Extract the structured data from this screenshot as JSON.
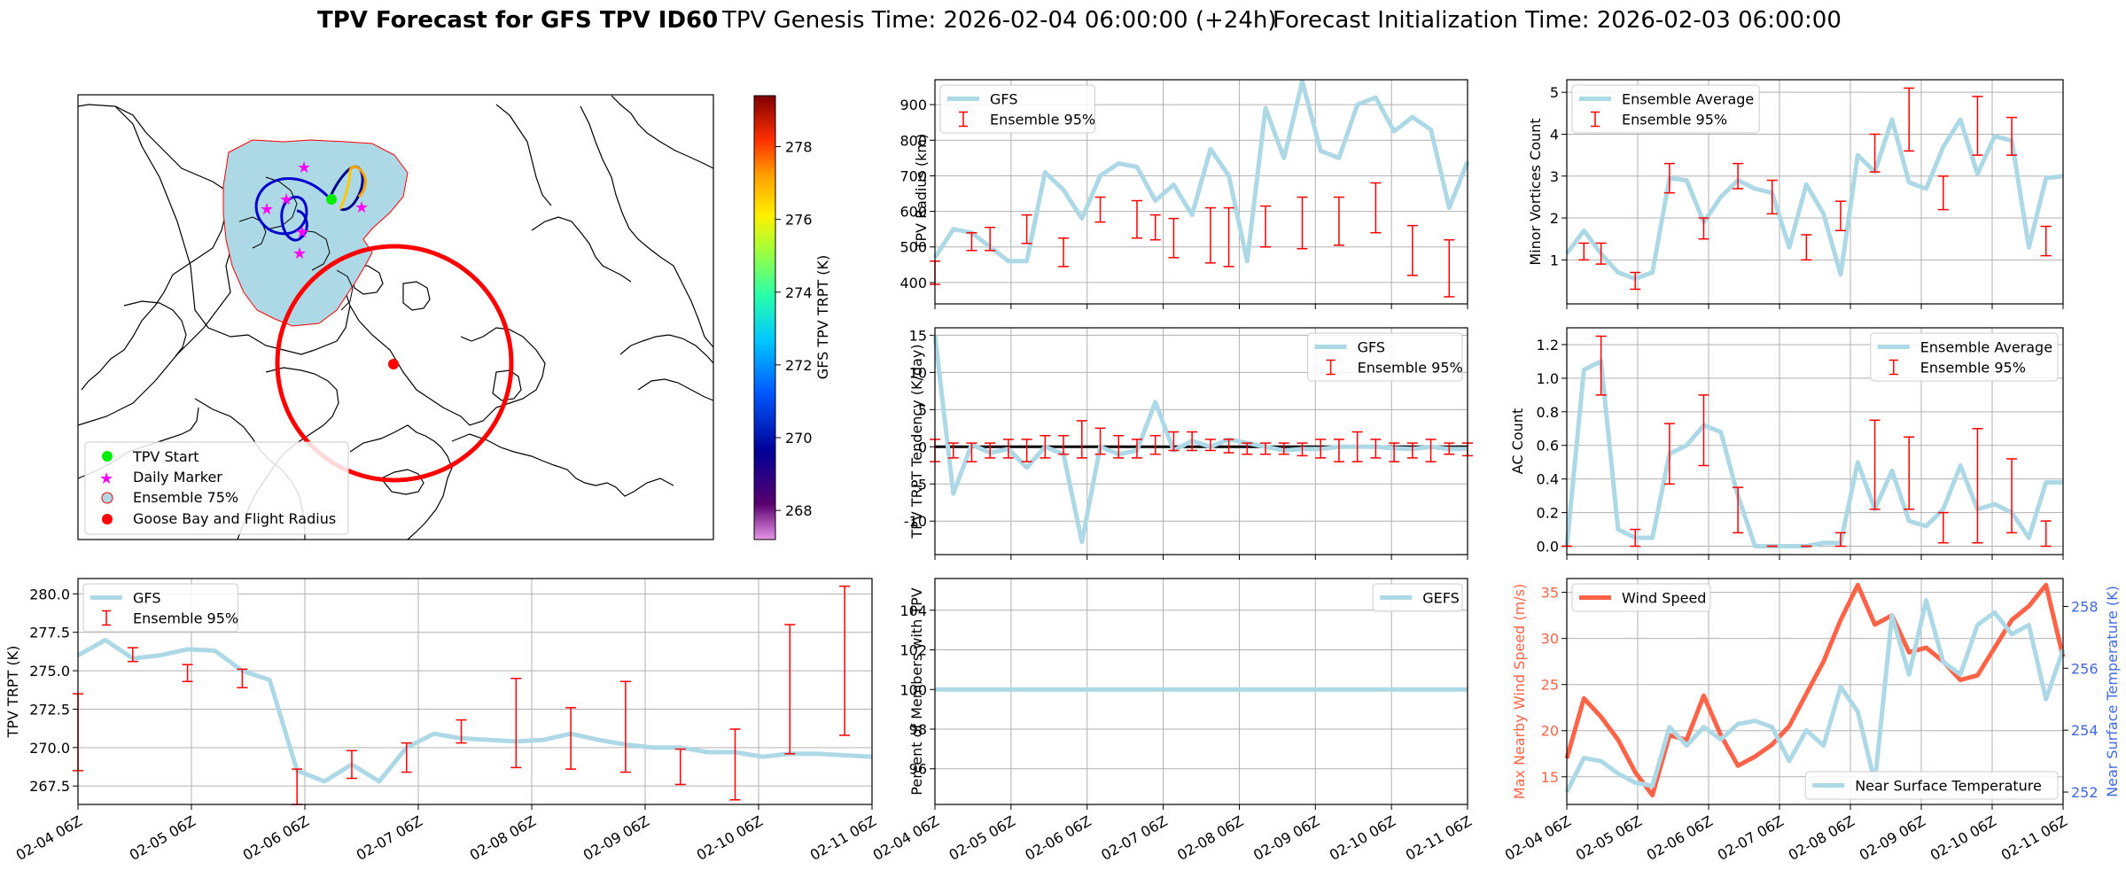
{
  "title": {
    "bold": "TPV Forecast for GFS TPV ID60",
    "genesis": "TPV Genesis Time: 2026-02-04 06:00:00 (+24h)",
    "init": "Forecast Initialization Time: 2026-02-03 06:00:00"
  },
  "colors": {
    "gfs": "#add8e6",
    "ensemble": "#ff0000",
    "wind": "#ff6347",
    "temp_axis": "#4169e1",
    "land_fill": "#add8e6",
    "start": "#00ee00",
    "marker": "#ff00ff",
    "goose": "#ff0000"
  },
  "x_ticks": [
    "02-04 06Z",
    "02-05 06Z",
    "02-06 06Z",
    "02-07 06Z",
    "02-08 06Z",
    "02-09 06Z",
    "02-10 06Z",
    "02-11 06Z"
  ],
  "map": {
    "colorbar_label": "GFS TPV TRPT (K)",
    "colorbar_ticks": [
      268,
      270,
      272,
      274,
      276,
      278
    ],
    "colorbar_range": [
      267.2,
      279.4
    ],
    "legend": [
      "TPV Start",
      "Daily Marker",
      "Ensemble 75%",
      "Goose Bay and Flight Radius"
    ]
  },
  "chart_data": [
    {
      "id": "radius",
      "type": "line",
      "title": "",
      "ylabel": "TPV Radius (km)",
      "ylim": [
        340,
        970
      ],
      "yticks": [
        400,
        500,
        600,
        700,
        800,
        900
      ],
      "legend_loc": "upper-left",
      "series": [
        {
          "name": "GFS",
          "values": [
            470,
            550,
            540,
            500,
            460,
            460,
            710,
            660,
            580,
            700,
            735,
            725,
            630,
            675,
            590,
            775,
            700,
            460,
            890,
            750,
            965,
            770,
            750,
            900,
            920,
            825,
            865,
            830,
            610,
            740
          ]
        }
      ],
      "errorbars": {
        "name": "Ensemble 95%",
        "x": [
          0,
          2,
          3,
          5,
          7,
          9,
          11,
          12,
          13,
          15,
          16,
          18,
          20,
          22,
          24,
          26,
          28
        ],
        "low": [
          395,
          490,
          490,
          510,
          445,
          570,
          525,
          520,
          470,
          455,
          445,
          500,
          495,
          505,
          540,
          420,
          360
        ],
        "high": [
          460,
          540,
          555,
          590,
          525,
          640,
          630,
          590,
          580,
          610,
          610,
          615,
          640,
          640,
          680,
          560,
          520
        ]
      }
    },
    {
      "id": "tendency",
      "type": "line",
      "title": "",
      "ylabel": "TPV TRPT Tendency (K/day)",
      "ylim": [
        -14.5,
        16
      ],
      "yticks": [
        -10,
        -5,
        0,
        5,
        10,
        15
      ],
      "legend_loc": "upper-right",
      "series": [
        {
          "name": "GFS",
          "values": [
            15,
            -6.3,
            0.3,
            -0.8,
            -0.3,
            -2.8,
            0,
            -1,
            -12.8,
            0,
            -1,
            -0.5,
            6,
            -0.5,
            0.8,
            0,
            1,
            0.5,
            0,
            -0.5,
            -0.3,
            -0.3,
            0,
            0,
            0,
            -0.2,
            -0.3,
            0,
            -0.3,
            -0.3
          ]
        }
      ],
      "errorbars": {
        "name": "Ensemble 95%",
        "x": [
          0,
          1,
          2,
          3,
          4,
          5,
          6,
          7,
          8,
          9,
          10,
          11,
          12,
          13,
          14,
          15,
          16,
          17,
          18,
          19,
          20,
          21,
          22,
          23,
          24,
          25,
          26,
          27,
          28,
          29
        ],
        "low": [
          -2,
          -1.5,
          -2,
          -1.5,
          -1.5,
          -2,
          -1.5,
          -1,
          -1.5,
          -1,
          -1.5,
          -1.5,
          -1,
          -0.5,
          -0.5,
          -0.5,
          -0.8,
          -1,
          -1,
          -1,
          -1.2,
          -1.5,
          -2,
          -2,
          -1.5,
          -2,
          -1.5,
          -2,
          -1,
          -1.2
        ],
        "high": [
          1,
          0.5,
          0.5,
          0.5,
          1,
          1,
          1.5,
          1.5,
          3.5,
          2.5,
          1.5,
          1,
          1.5,
          2,
          2,
          1,
          1,
          0.5,
          0.5,
          0.5,
          0.5,
          1,
          1,
          2,
          1,
          0.5,
          0.5,
          1,
          0.5,
          0.5
        ]
      },
      "zero_line": true
    },
    {
      "id": "members",
      "type": "line",
      "title": "",
      "ylabel": "Percent of Members with TPV",
      "ylim": [
        94.2,
        105.6
      ],
      "yticks": [
        96,
        98,
        100,
        102,
        104
      ],
      "legend_loc": "upper-right",
      "series": [
        {
          "name": "GEFS",
          "values": [
            100,
            100,
            100,
            100,
            100,
            100,
            100,
            100,
            100,
            100,
            100,
            100,
            100,
            100,
            100,
            100,
            100,
            100,
            100,
            100,
            100,
            100,
            100,
            100,
            100,
            100,
            100,
            100,
            100,
            100
          ]
        }
      ]
    },
    {
      "id": "minor",
      "type": "line",
      "title": "",
      "ylabel": "Minor Vortices Count",
      "ylim": [
        -0.05,
        5.3
      ],
      "yticks": [
        1,
        2,
        3,
        4,
        5
      ],
      "legend_loc": "upper-left",
      "series": [
        {
          "name": "Ensemble Average",
          "values": [
            1.15,
            1.7,
            1.15,
            0.7,
            0.55,
            0.7,
            2.95,
            2.9,
            1.9,
            2.5,
            2.9,
            2.7,
            2.6,
            1.3,
            2.8,
            2.1,
            0.65,
            3.5,
            3.1,
            4.35,
            2.85,
            2.7,
            3.7,
            4.35,
            3.05,
            3.95,
            3.85,
            1.3,
            2.95,
            3.0
          ]
        }
      ],
      "errorbars": {
        "name": "Ensemble 95%",
        "x": [
          1,
          2,
          4,
          6,
          8,
          10,
          12,
          14,
          16,
          18,
          20,
          22,
          24,
          26,
          28
        ],
        "low": [
          1.0,
          0.9,
          0.3,
          2.6,
          1.5,
          2.7,
          2.1,
          1.0,
          1.7,
          3.1,
          3.6,
          2.2,
          3.5,
          3.5,
          1.1
        ],
        "high": [
          1.4,
          1.4,
          0.7,
          3.3,
          2.0,
          3.3,
          2.9,
          1.6,
          2.4,
          4.0,
          5.1,
          3.0,
          4.9,
          4.4,
          1.8
        ]
      }
    },
    {
      "id": "ac",
      "type": "line",
      "title": "",
      "ylabel": "AC Count",
      "ylim": [
        -0.05,
        1.3
      ],
      "yticks": [
        0.0,
        0.2,
        0.4,
        0.6,
        0.8,
        1.0,
        1.2
      ],
      "legend_loc": "upper-right",
      "series": [
        {
          "name": "Ensemble Average",
          "values": [
            0,
            1.05,
            1.1,
            0.1,
            0.05,
            0.05,
            0.55,
            0.6,
            0.72,
            0.68,
            0.3,
            0,
            0,
            0,
            0,
            0.02,
            0.02,
            0.5,
            0.22,
            0.45,
            0.15,
            0.12,
            0.22,
            0.48,
            0.22,
            0.25,
            0.2,
            0.05,
            0.38,
            0.38
          ]
        }
      ],
      "errorbars": {
        "name": "Ensemble 95%",
        "x": [
          0,
          2,
          4,
          6,
          8,
          10,
          12,
          14,
          16,
          18,
          20,
          22,
          24,
          26,
          28
        ],
        "low": [
          0,
          0.9,
          0,
          0.37,
          0.48,
          0.08,
          0,
          0,
          0,
          0.22,
          0.22,
          0.02,
          0.02,
          0.08,
          0
        ],
        "high": [
          0,
          1.25,
          0.1,
          0.73,
          0.9,
          0.35,
          0,
          0,
          0.08,
          0.75,
          0.65,
          0.2,
          0.7,
          0.52,
          0.15
        ]
      }
    },
    {
      "id": "wind",
      "type": "line",
      "title": "",
      "ylabel": "Max Nearby Wind Speed (m/s)",
      "ylabel_right": "Near Surface Temperature (K)",
      "ylim": [
        12,
        36.5
      ],
      "yticks": [
        15,
        20,
        25,
        30,
        35
      ],
      "ylim_right": [
        251.6,
        258.9
      ],
      "yticks_right": [
        252,
        254,
        256,
        258
      ],
      "legend_loc": "upper-left",
      "legend_right_loc": "lower-right",
      "series": [
        {
          "name": "Wind Speed",
          "axis": "left",
          "values": [
            17,
            23.5,
            21.5,
            19,
            15.5,
            13,
            19.5,
            19,
            23.8,
            19.5,
            16.2,
            17.2,
            18.5,
            20.5,
            24,
            27.5,
            32,
            35.8,
            31.5,
            32.5,
            28.5,
            29,
            27.5,
            25.5,
            26,
            29,
            32,
            33.5,
            35.8,
            28
          ]
        },
        {
          "name": "Near Surface Temperature",
          "axis": "right",
          "values": [
            252.0,
            253.1,
            253.0,
            252.6,
            252.3,
            252.2,
            254.1,
            253.5,
            254.1,
            253.7,
            254.2,
            254.3,
            254.1,
            253.0,
            254.0,
            253.5,
            255.4,
            254.6,
            252.3,
            257.7,
            255.8,
            258.2,
            256.2,
            255.8,
            257.4,
            257.8,
            257.1,
            257.4,
            255.0,
            256.6
          ]
        }
      ]
    },
    {
      "id": "trpt",
      "type": "line",
      "title": "",
      "ylabel": "TPV TRPT (K)",
      "ylim": [
        266.3,
        281.0
      ],
      "yticks": [
        267.5,
        270.0,
        272.5,
        275.0,
        277.5,
        280.0
      ],
      "legend_loc": "upper-left",
      "series": [
        {
          "name": "GFS",
          "values": [
            276.0,
            277.0,
            275.8,
            276.0,
            276.4,
            276.3,
            275.0,
            274.4,
            268.5,
            267.8,
            268.9,
            267.8,
            270.0,
            270.9,
            270.6,
            270.5,
            270.4,
            270.5,
            270.9,
            270.5,
            270.2,
            270.0,
            270.0,
            269.7,
            269.7,
            269.4,
            269.6,
            269.6,
            269.5,
            269.4
          ]
        }
      ],
      "errorbars": {
        "name": "Ensemble 95%",
        "x": [
          0,
          2,
          4,
          6,
          8,
          10,
          12,
          14,
          16,
          18,
          20,
          22,
          24,
          26,
          28
        ],
        "low": [
          268.5,
          275.6,
          274.3,
          273.9,
          266.3,
          268.0,
          268.4,
          270.3,
          268.7,
          268.6,
          268.4,
          267.6,
          266.6,
          269.6,
          270.8
        ],
        "high": [
          273.5,
          276.5,
          275.4,
          275.1,
          268.6,
          269.8,
          270.3,
          271.8,
          274.5,
          272.6,
          274.3,
          269.9,
          271.2,
          278.0,
          280.5
        ]
      }
    }
  ]
}
